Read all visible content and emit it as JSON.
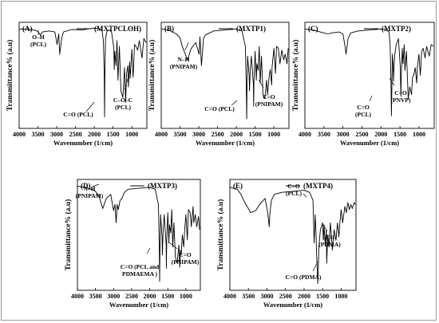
{
  "chart_data": [
    {
      "type": "line",
      "panel_label": "(A)",
      "legend": "(MXTPCLOH)",
      "xlabel": "Wavenumber (1/cm)",
      "ylabel": "Transmittance% (a.u)",
      "x_ticks": [
        "4000",
        "3500",
        "3000",
        "2500",
        "2000",
        "1500",
        "1000"
      ],
      "xlim": [
        4000,
        600
      ],
      "annotations": [
        {
          "lines": [
            "O–H",
            "(PCL)"
          ],
          "x": 3440
        },
        {
          "lines": [
            "C=O (PCL)"
          ],
          "x": 1725
        },
        {
          "lines": [
            "C–O–C",
            "(PCL)"
          ],
          "x": 1180
        }
      ],
      "series": [
        {
          "x": [
            4000,
            3800,
            3600,
            3500,
            3440,
            3380,
            3200,
            3050,
            2990,
            2945,
            2920,
            2865,
            2820,
            2600,
            2300,
            2200,
            2000,
            1860,
            1790,
            1755,
            1735,
            1727,
            1718,
            1700,
            1660,
            1600,
            1540,
            1480,
            1470,
            1455,
            1420,
            1395,
            1370,
            1330,
            1290,
            1240,
            1195,
            1165,
            1140,
            1105,
            1090,
            1060,
            1045,
            1000,
            965,
            930,
            890,
            845,
            800,
            730,
            680,
            620
          ],
          "y": [
            0.98,
            0.98,
            0.97,
            0.955,
            0.92,
            0.95,
            0.96,
            0.95,
            0.82,
            0.93,
            0.72,
            0.89,
            0.95,
            0.975,
            0.97,
            0.98,
            0.99,
            0.98,
            0.96,
            0.85,
            0.5,
            0.07,
            0.5,
            0.88,
            0.96,
            0.97,
            0.95,
            0.78,
            0.56,
            0.75,
            0.6,
            0.86,
            0.45,
            0.8,
            0.34,
            0.27,
            0.58,
            0.22,
            0.52,
            0.6,
            0.38,
            0.64,
            0.47,
            0.77,
            0.48,
            0.82,
            0.8,
            0.76,
            0.86,
            0.68,
            0.88,
            0.84
          ]
        }
      ]
    },
    {
      "type": "line",
      "panel_label": "(B)",
      "legend": "(MXTP1)",
      "xlabel": "Wavenumber (1/cm)",
      "ylabel": "Transmittance% (a.u)",
      "x_ticks": [
        "4000",
        "3500",
        "3000",
        "2500",
        "2000",
        "1500",
        "1000"
      ],
      "xlim": [
        4000,
        600
      ],
      "annotations": [
        {
          "lines": [
            "N–H",
            "(PNIPAM)"
          ],
          "x": 3300
        },
        {
          "lines": [
            "C=O (PCL)"
          ],
          "x": 1730
        },
        {
          "lines": [
            "C=O",
            "(PNIPAM)"
          ],
          "x": 1545
        }
      ],
      "series": [
        {
          "x": [
            4000,
            3800,
            3600,
            3500,
            3440,
            3300,
            3200,
            3080,
            2990,
            2970,
            2930,
            2875,
            2820,
            2600,
            2300,
            2000,
            1850,
            1760,
            1735,
            1725,
            1715,
            1700,
            1660,
            1650,
            1630,
            1600,
            1545,
            1540,
            1530,
            1500,
            1470,
            1455,
            1420,
            1390,
            1365,
            1330,
            1290,
            1240,
            1195,
            1170,
            1130,
            1100,
            1060,
            1050,
            1000,
            960,
            930,
            880,
            840,
            790,
            740,
            700,
            650,
            620
          ],
          "y": [
            0.98,
            0.97,
            0.93,
            0.89,
            0.8,
            0.66,
            0.78,
            0.84,
            0.72,
            0.9,
            0.6,
            0.88,
            0.92,
            0.96,
            0.97,
            0.98,
            0.96,
            0.8,
            0.35,
            0.05,
            0.4,
            0.7,
            0.5,
            0.34,
            0.55,
            0.7,
            0.4,
            0.18,
            0.45,
            0.75,
            0.45,
            0.62,
            0.55,
            0.8,
            0.42,
            0.7,
            0.3,
            0.26,
            0.45,
            0.3,
            0.48,
            0.56,
            0.4,
            0.58,
            0.78,
            0.52,
            0.8,
            0.78,
            0.62,
            0.76,
            0.66,
            0.72,
            0.62,
            0.78
          ]
        }
      ]
    },
    {
      "type": "line",
      "panel_label": "(C)",
      "legend": "(MXTP2)",
      "xlabel": "Wavenumber (1/cm)",
      "ylabel": "Transmittance% (a.u)",
      "x_ticks": [
        "4000",
        "3500",
        "3000",
        "2500",
        "2000",
        "1500",
        "1000"
      ],
      "xlim": [
        4000,
        600
      ],
      "annotations": [
        {
          "lines": [
            "C=O",
            "(PCL)"
          ],
          "x": 1725
        },
        {
          "lines": [
            "C=O",
            "(PNVP)"
          ],
          "x": 1490
        }
      ],
      "series": [
        {
          "x": [
            4000,
            3800,
            3600,
            3500,
            3400,
            3300,
            3100,
            3000,
            2945,
            2920,
            2865,
            2800,
            2600,
            2300,
            2000,
            1850,
            1790,
            1760,
            1738,
            1725,
            1712,
            1700,
            1680,
            1670,
            1660,
            1640,
            1600,
            1540,
            1495,
            1475,
            1465,
            1440,
            1420,
            1390,
            1370,
            1330,
            1295,
            1285,
            1245,
            1195,
            1170,
            1140,
            1100,
            1060,
            1045,
            1000,
            965,
            930,
            890,
            840,
            800,
            730,
            680,
            620
          ],
          "y": [
            0.98,
            0.97,
            0.95,
            0.94,
            0.93,
            0.94,
            0.95,
            0.93,
            0.8,
            0.72,
            0.88,
            0.94,
            0.96,
            0.97,
            0.98,
            0.97,
            0.95,
            0.84,
            0.45,
            0.08,
            0.4,
            0.72,
            0.6,
            0.44,
            0.56,
            0.7,
            0.82,
            0.88,
            0.6,
            0.28,
            0.52,
            0.78,
            0.62,
            0.82,
            0.55,
            0.75,
            0.38,
            0.25,
            0.38,
            0.3,
            0.48,
            0.5,
            0.58,
            0.42,
            0.58,
            0.72,
            0.5,
            0.75,
            0.78,
            0.68,
            0.8,
            0.7,
            0.82,
            0.8
          ]
        }
      ]
    },
    {
      "type": "line",
      "panel_label": "(D)",
      "legend": "(MXTP3)",
      "xlabel": "Wavenumber (1/cm)",
      "ylabel": "Transmittance% (a.u)",
      "x_ticks": [
        "4000",
        "3500",
        "3000",
        "2500",
        "2000",
        "1500",
        "1000"
      ],
      "xlim": [
        4000,
        600
      ],
      "annotations": [
        {
          "lines": [
            "N–H",
            "(PNIPAM)"
          ],
          "x": 3300
        },
        {
          "lines": [
            "C=O (PCL and",
            "PDMAEMA )"
          ],
          "x": 1725
        },
        {
          "lines": [
            "C=O",
            "(PNIPAM)"
          ],
          "x": 1545
        }
      ],
      "series": [
        {
          "x": [
            4000,
            3800,
            3600,
            3500,
            3400,
            3300,
            3200,
            3080,
            3000,
            2960,
            2930,
            2900,
            2870,
            2820,
            2770,
            2700,
            2600,
            2300,
            2000,
            1850,
            1760,
            1735,
            1725,
            1715,
            1700,
            1660,
            1650,
            1630,
            1600,
            1545,
            1540,
            1530,
            1500,
            1470,
            1455,
            1420,
            1390,
            1365,
            1330,
            1290,
            1240,
            1195,
            1170,
            1150,
            1130,
            1100,
            1060,
            1040,
            1000,
            960,
            930,
            880,
            850,
            800,
            780,
            740,
            700,
            650,
            620
          ],
          "y": [
            0.98,
            0.97,
            0.95,
            0.93,
            0.88,
            0.76,
            0.86,
            0.9,
            0.74,
            0.8,
            0.62,
            0.8,
            0.75,
            0.84,
            0.86,
            0.92,
            0.95,
            0.96,
            0.97,
            0.95,
            0.8,
            0.35,
            0.04,
            0.4,
            0.7,
            0.48,
            0.3,
            0.52,
            0.7,
            0.4,
            0.17,
            0.45,
            0.72,
            0.42,
            0.6,
            0.52,
            0.75,
            0.38,
            0.62,
            0.28,
            0.22,
            0.4,
            0.18,
            0.35,
            0.3,
            0.5,
            0.38,
            0.52,
            0.7,
            0.45,
            0.75,
            0.72,
            0.58,
            0.78,
            0.62,
            0.7,
            0.58,
            0.68,
            0.55
          ]
        }
      ]
    },
    {
      "type": "line",
      "panel_label": "(E)",
      "legend": "(MXTP4)",
      "xlabel": "Wavenumber (1/cm)",
      "ylabel": "Transmittance% (a.u)",
      "x_ticks": [
        "4000",
        "3500",
        "3000",
        "2500",
        "2000",
        "1500",
        "1000"
      ],
      "xlim": [
        4000,
        600
      ],
      "annotations": [
        {
          "lines": [
            "C=O",
            "(PCL)"
          ],
          "x": 1725
        },
        {
          "lines": [
            "C=O (PDMA)"
          ],
          "x": 1630
        },
        {
          "lines": [
            "–CH₃",
            "(PDMA)"
          ],
          "x": 1400
        }
      ],
      "series": [
        {
          "x": [
            4000,
            3800,
            3700,
            3600,
            3500,
            3440,
            3300,
            3200,
            3050,
            2980,
            2940,
            2920,
            2880,
            2800,
            2600,
            2300,
            2000,
            1850,
            1760,
            1735,
            1727,
            1718,
            1700,
            1680,
            1660,
            1640,
            1630,
            1620,
            1600,
            1560,
            1500,
            1480,
            1460,
            1430,
            1400,
            1390,
            1360,
            1330,
            1290,
            1250,
            1240,
            1190,
            1140,
            1100,
            1060,
            1040,
            1000,
            960,
            900,
            860,
            820,
            780,
            740,
            700,
            650,
            620
          ],
          "y": [
            0.97,
            0.95,
            0.9,
            0.82,
            0.76,
            0.72,
            0.74,
            0.8,
            0.86,
            0.72,
            0.58,
            0.72,
            0.84,
            0.9,
            0.92,
            0.93,
            0.94,
            0.92,
            0.84,
            0.5,
            0.42,
            0.5,
            0.7,
            0.55,
            0.3,
            0.12,
            0.02,
            0.12,
            0.38,
            0.55,
            0.62,
            0.45,
            0.6,
            0.4,
            0.55,
            0.22,
            0.5,
            0.38,
            0.62,
            0.42,
            0.35,
            0.55,
            0.45,
            0.62,
            0.48,
            0.6,
            0.75,
            0.62,
            0.78,
            0.72,
            0.82,
            0.75,
            0.8,
            0.76,
            0.82,
            0.8
          ]
        }
      ]
    }
  ]
}
